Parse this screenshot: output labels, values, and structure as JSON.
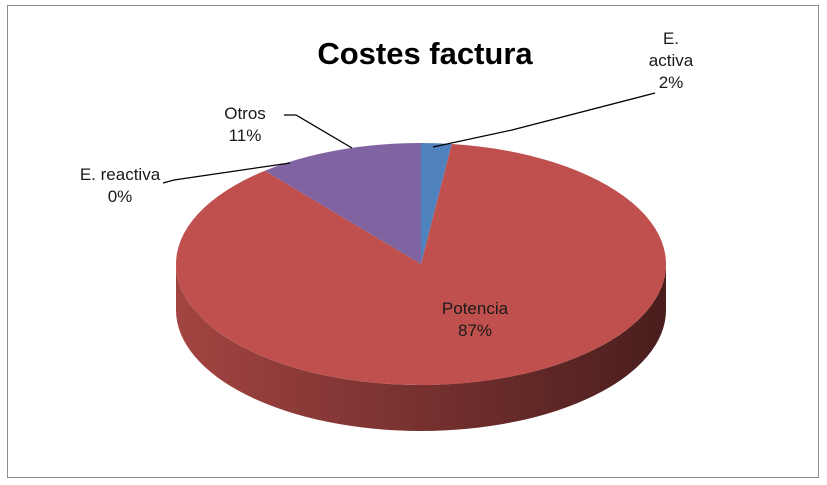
{
  "chart_data": {
    "type": "pie",
    "title": "Costes factura",
    "categories": [
      "E. activa",
      "Potencia",
      "E. reactiva",
      "Otros"
    ],
    "values": [
      2,
      87,
      0,
      11
    ],
    "value_labels": [
      "2%",
      "87%",
      "0%",
      "11%"
    ],
    "colors": [
      "#4f81bd",
      "#c0504d",
      "#9bbb59",
      "#8064a2"
    ]
  }
}
